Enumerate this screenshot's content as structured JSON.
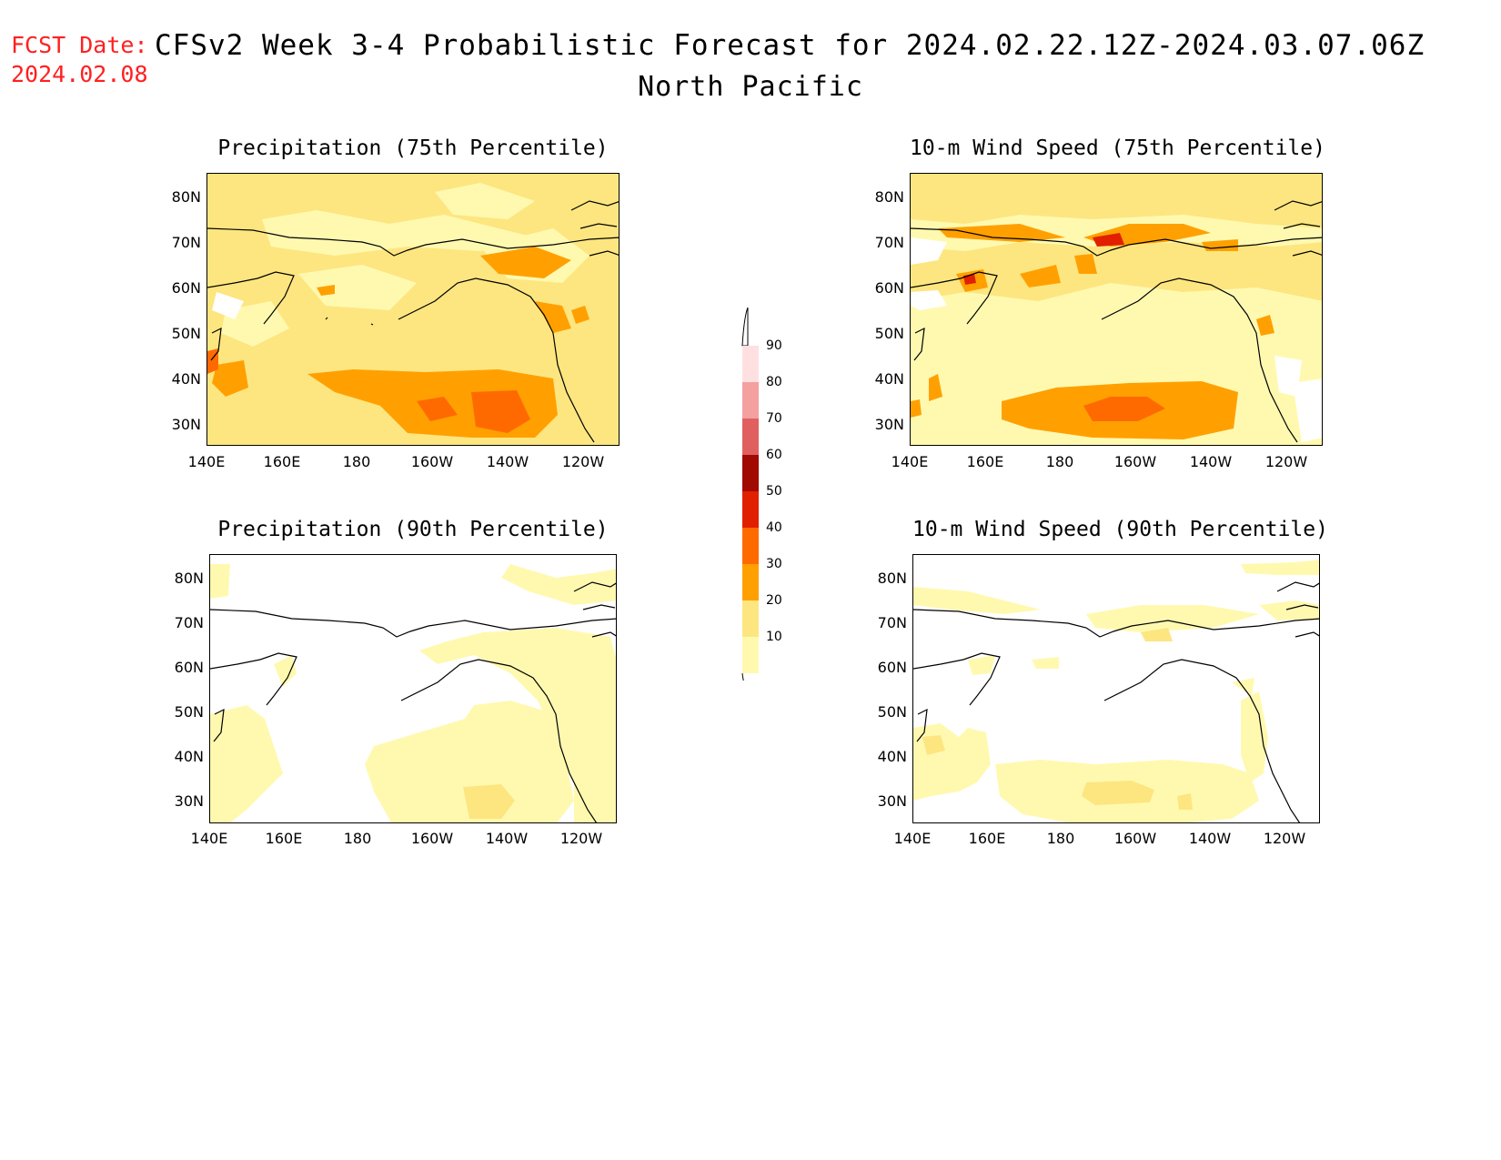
{
  "header": {
    "fcst_label": "FCST Date:",
    "fcst_date": "2024.02.08",
    "title": "CFSv2 Week 3-4 Probabilistic Forecast for 2024.02.22.12Z-2024.03.07.06Z",
    "region": "North Pacific"
  },
  "axes": {
    "lat_labels": [
      "80N",
      "70N",
      "60N",
      "50N",
      "40N",
      "30N"
    ],
    "lon_labels": [
      "140E",
      "160E",
      "180",
      "160W",
      "140W",
      "120W"
    ]
  },
  "panels": [
    {
      "title": "Precipitation (75th Percentile)"
    },
    {
      "title": "10-m Wind Speed (75th Percentile)"
    },
    {
      "title": "Precipitation (90th Percentile)"
    },
    {
      "title": "10-m Wind Speed (90th Percentile)"
    }
  ],
  "colorbar": {
    "levels": [
      "10",
      "20",
      "30",
      "40",
      "50",
      "60",
      "70",
      "80",
      "90"
    ],
    "colors": [
      "#fff9b0",
      "#fde680",
      "#ffa000",
      "#ff6a00",
      "#e02000",
      "#a00a00",
      "#e06060",
      "#f4a0a0",
      "#ffe0e0"
    ]
  }
}
